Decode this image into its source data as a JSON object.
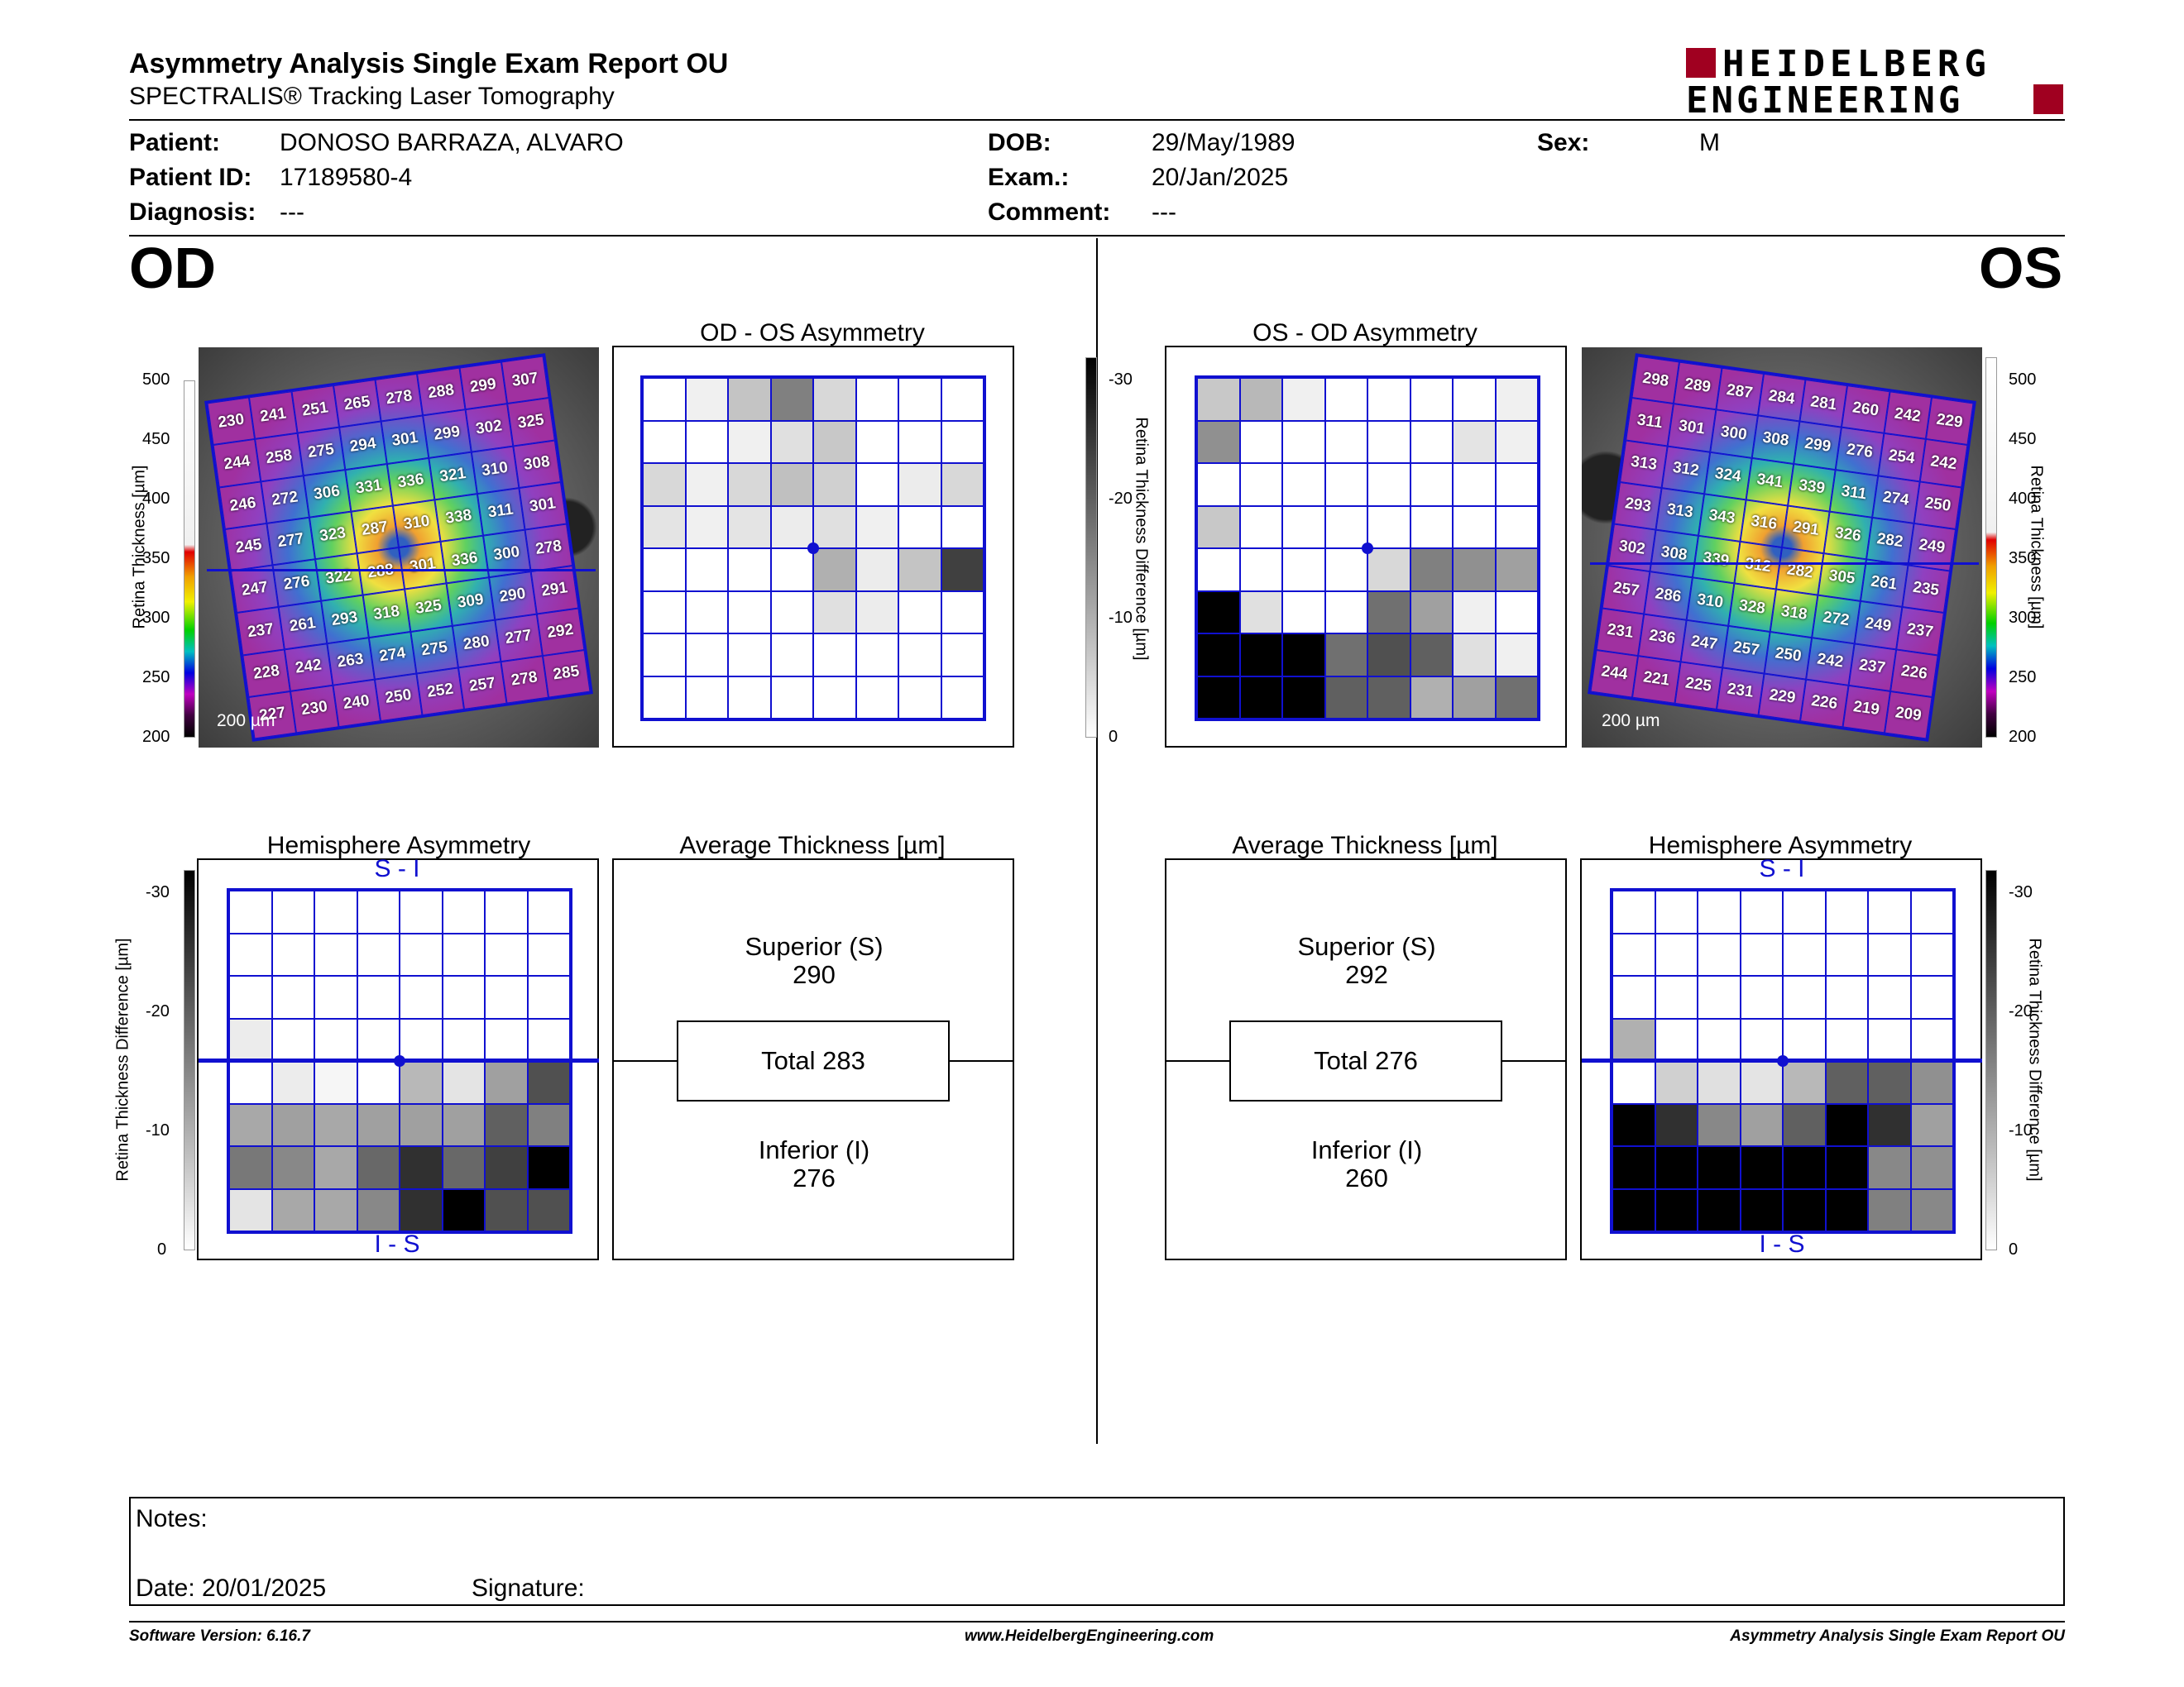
{
  "header": {
    "title": "Asymmetry Analysis Single Exam Report OU",
    "subtitle": "SPECTRALIS® Tracking Laser Tomography",
    "logo_line1": "HEIDELBERG",
    "logo_line2": "ENGINEERING"
  },
  "patient": {
    "patient_label": "Patient:",
    "patient": "DONOSO BARRAZA, ALVARO",
    "id_label": "Patient ID:",
    "id": "17189580-4",
    "diagnosis_label": "Diagnosis:",
    "diagnosis": "---",
    "dob_label": "DOB:",
    "dob": "29/May/1989",
    "exam_label": "Exam.:",
    "exam": "20/Jan/2025",
    "comment_label": "Comment:",
    "comment": "---",
    "sex_label": "Sex:",
    "sex": "M"
  },
  "od": {
    "eye": "OD",
    "asym_title": "OD - OS Asymmetry",
    "hemi_title": "Hemisphere Asymmetry",
    "avg_title": "Average Thickness [µm]",
    "superior_label": "Superior (S)",
    "superior": "290",
    "total": "Total 283",
    "inferior_label": "Inferior (I)",
    "inferior": "276",
    "si_label": "S - I",
    "is_label": "I - S",
    "scalebar": "200 µm",
    "thickness": [
      [
        230,
        241,
        251,
        265,
        278,
        288,
        299,
        307
      ],
      [
        244,
        258,
        275,
        294,
        301,
        299,
        302,
        325
      ],
      [
        246,
        272,
        306,
        331,
        336,
        321,
        310,
        308
      ],
      [
        245,
        277,
        323,
        287,
        310,
        338,
        311,
        301
      ],
      [
        247,
        276,
        322,
        288,
        301,
        336,
        300,
        278
      ],
      [
        237,
        261,
        293,
        318,
        325,
        309,
        290,
        291
      ],
      [
        228,
        242,
        263,
        274,
        275,
        280,
        277,
        292
      ],
      [
        227,
        230,
        240,
        250,
        252,
        257,
        278,
        285
      ]
    ],
    "asym_shades": [
      [
        "#fff",
        "#f0f0f0",
        "#c4c4c4",
        "#808080",
        "#d8d8d8",
        "#fff",
        "#fff",
        "#fff"
      ],
      [
        "#fff",
        "#fff",
        "#f0f0f0",
        "#e0e0e0",
        "#c8c8c8",
        "#fff",
        "#fff",
        "#fff"
      ],
      [
        "#d8d8d8",
        "#f0f0f0",
        "#d8d8d8",
        "#c0c0c0",
        "#d0d0d0",
        "#fff",
        "#ececec",
        "#d8d8d8"
      ],
      [
        "#e4e4e4",
        "#f0f0f0",
        "#e4e4e4",
        "#ececec",
        "#e0e0e0",
        "#f0f0f0",
        "#fff",
        "#fff"
      ],
      [
        "#fff",
        "#fff",
        "#fff",
        "#fff",
        "#b0b0b0",
        "#ececec",
        "#c4c4c4",
        "#404040"
      ],
      [
        "#fff",
        "#fff",
        "#fff",
        "#fff",
        "#e0e0e0",
        "#ececec",
        "#fff",
        "#fff"
      ],
      [
        "#fff",
        "#fff",
        "#fff",
        "#fff",
        "#fff",
        "#fff",
        "#fff",
        "#fff"
      ],
      [
        "#fff",
        "#fff",
        "#fff",
        "#fff",
        "#fff",
        "#fff",
        "#fff",
        "#fff"
      ]
    ],
    "hemi_shades": [
      [
        "#fff",
        "#fff",
        "#fff",
        "#fff",
        "#fff",
        "#fff",
        "#fff",
        "#fff"
      ],
      [
        "#fff",
        "#fff",
        "#fff",
        "#fff",
        "#fff",
        "#fff",
        "#fff",
        "#fff"
      ],
      [
        "#fff",
        "#fff",
        "#fff",
        "#fff",
        "#fff",
        "#fff",
        "#fff",
        "#fff"
      ],
      [
        "#ececec",
        "#fff",
        "#fff",
        "#fff",
        "#fff",
        "#fff",
        "#fff",
        "#fff"
      ],
      [
        "#fff",
        "#ececec",
        "#f6f6f6",
        "#fff",
        "#b8b8b8",
        "#e4e4e4",
        "#a0a0a0",
        "#505050"
      ],
      [
        "#a8a8a8",
        "#a0a0a0",
        "#a8a8a8",
        "#a0a0a0",
        "#a0a0a0",
        "#a0a0a0",
        "#606060",
        "#808080"
      ],
      [
        "#787878",
        "#888888",
        "#a8a8a8",
        "#686868",
        "#303030",
        "#686868",
        "#404040",
        "#000"
      ],
      [
        "#e4e4e4",
        "#a8a8a8",
        "#a8a8a8",
        "#888888",
        "#303030",
        "#000",
        "#505050",
        "#505050"
      ]
    ]
  },
  "os": {
    "eye": "OS",
    "asym_title": "OS - OD Asymmetry",
    "hemi_title": "Hemisphere Asymmetry",
    "avg_title": "Average Thickness [µm]",
    "superior_label": "Superior (S)",
    "superior": "292",
    "total": "Total 276",
    "inferior_label": "Inferior (I)",
    "inferior": "260",
    "si_label": "S - I",
    "is_label": "I - S",
    "scalebar": "200 µm",
    "thickness": [
      [
        298,
        289,
        287,
        284,
        281,
        260,
        242,
        229
      ],
      [
        311,
        301,
        300,
        308,
        299,
        276,
        254,
        242
      ],
      [
        313,
        312,
        324,
        341,
        339,
        311,
        274,
        250
      ],
      [
        293,
        313,
        343,
        316,
        291,
        326,
        282,
        249
      ],
      [
        302,
        308,
        339,
        312,
        282,
        305,
        261,
        235
      ],
      [
        257,
        286,
        310,
        328,
        318,
        272,
        249,
        237
      ],
      [
        231,
        236,
        247,
        257,
        250,
        242,
        237,
        226
      ],
      [
        244,
        221,
        225,
        231,
        229,
        226,
        219,
        209
      ]
    ],
    "asym_shades": [
      [
        "#c8c8c8",
        "#b8b8b8",
        "#f0f0f0",
        "#fff",
        "#fff",
        "#fff",
        "#fff",
        "#f0f0f0"
      ],
      [
        "#909090",
        "#fff",
        "#fff",
        "#fff",
        "#fff",
        "#fff",
        "#e4e4e4",
        "#f0f0f0"
      ],
      [
        "#fff",
        "#fff",
        "#fff",
        "#fff",
        "#fff",
        "#fff",
        "#fff",
        "#fff"
      ],
      [
        "#c8c8c8",
        "#fff",
        "#fff",
        "#fff",
        "#fff",
        "#fff",
        "#fff",
        "#fff"
      ],
      [
        "#fff",
        "#fff",
        "#fff",
        "#fff",
        "#d8d8d8",
        "#808080",
        "#909090",
        "#a0a0a0"
      ],
      [
        "#000",
        "#e0e0e0",
        "#fff",
        "#fff",
        "#707070",
        "#a0a0a0",
        "#f0f0f0",
        "#fff"
      ],
      [
        "#000",
        "#000",
        "#000",
        "#707070",
        "#505050",
        "#606060",
        "#e0e0e0",
        "#f0f0f0"
      ],
      [
        "#000",
        "#000",
        "#000",
        "#606060",
        "#606060",
        "#b0b0b0",
        "#a0a0a0",
        "#707070"
      ]
    ],
    "hemi_shades": [
      [
        "#fff",
        "#fff",
        "#fff",
        "#fff",
        "#fff",
        "#fff",
        "#fff",
        "#fff"
      ],
      [
        "#fff",
        "#fff",
        "#fff",
        "#fff",
        "#fff",
        "#fff",
        "#fff",
        "#fff"
      ],
      [
        "#fff",
        "#fff",
        "#fff",
        "#fff",
        "#fff",
        "#fff",
        "#fff",
        "#fff"
      ],
      [
        "#b0b0b0",
        "#fff",
        "#fff",
        "#fff",
        "#fff",
        "#fff",
        "#fff",
        "#fff"
      ],
      [
        "#fff",
        "#d0d0d0",
        "#e0e0e0",
        "#e4e4e4",
        "#b8b8b8",
        "#606060",
        "#606060",
        "#909090"
      ],
      [
        "#000",
        "#303030",
        "#888888",
        "#a0a0a0",
        "#606060",
        "#000",
        "#303030",
        "#a0a0a0"
      ],
      [
        "#000",
        "#000",
        "#000",
        "#000",
        "#000",
        "#000",
        "#888888",
        "#909090"
      ],
      [
        "#000",
        "#000",
        "#000",
        "#000",
        "#000",
        "#000",
        "#808080",
        "#888888"
      ]
    ]
  },
  "thickness_scale": {
    "label": "Retina Thickness [µm]",
    "ticks": [
      "500",
      "450",
      "400",
      "350",
      "300",
      "250",
      "200"
    ]
  },
  "difference_scale": {
    "label": "Retina Thickness Difference [µm]",
    "ticks": [
      "-30",
      "-20",
      "-10",
      "0"
    ]
  },
  "notes": {
    "notes_label": "Notes:",
    "date_label": "Date: 20/01/2025",
    "signature_label": "Signature:"
  },
  "footer": {
    "version": "Software Version: 6.16.7",
    "url": "www.HeidelbergEngineering.com",
    "report": "Asymmetry Analysis Single Exam Report OU"
  },
  "colors": {
    "grid_blue": "#1010d0",
    "logo_red": "#a00020"
  }
}
